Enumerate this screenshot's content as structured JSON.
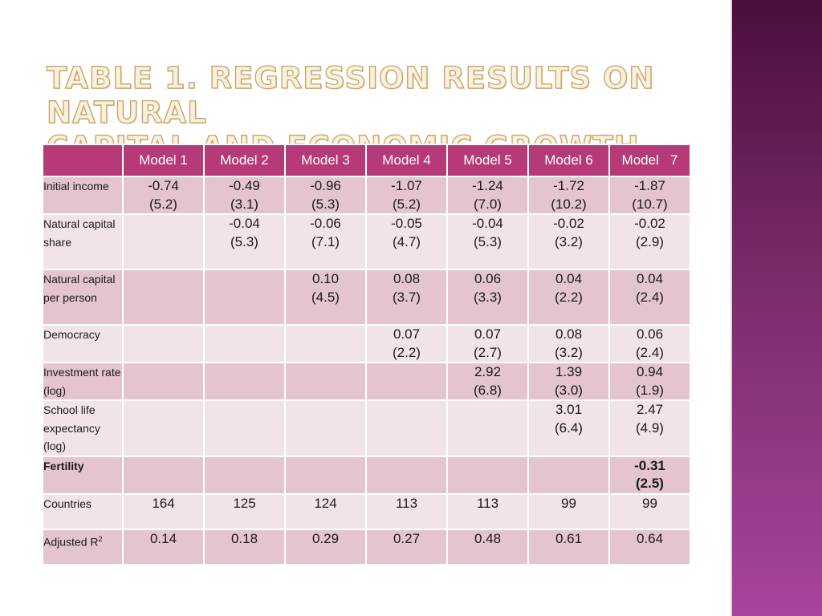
{
  "slide": {
    "title_line1": "Table 1. Regression results on natural",
    "title_line2": "capital and economic growth"
  },
  "table": {
    "columns": [
      "Model 1",
      "Model 2",
      "Model 3",
      "Model 4",
      "Model 5",
      "Model 6",
      "Model   7"
    ],
    "rows": [
      {
        "label": "Initial income",
        "cells": [
          {
            "coef": "-0.74",
            "tstat": "(5.2)"
          },
          {
            "coef": "-0.49",
            "tstat": "(3.1)"
          },
          {
            "coef": "-0.96",
            "tstat": "(5.3)"
          },
          {
            "coef": "-1.07",
            "tstat": "(5.2)"
          },
          {
            "coef": "-1.24",
            "tstat": "(7.0)"
          },
          {
            "coef": "-1.72",
            "tstat": "(10.2)"
          },
          {
            "coef": "-1.87",
            "tstat": "(10.7)"
          }
        ]
      },
      {
        "label": "Natural capital share",
        "cells": [
          {
            "coef": "",
            "tstat": ""
          },
          {
            "coef": "-0.04",
            "tstat": "(5.3)"
          },
          {
            "coef": "-0.06",
            "tstat": "(7.1)"
          },
          {
            "coef": "-0.05",
            "tstat": "(4.7)"
          },
          {
            "coef": "-0.04",
            "tstat": "(5.3)"
          },
          {
            "coef": "-0.02",
            "tstat": "(3.2)"
          },
          {
            "coef": "-0.02",
            "tstat": "(2.9)"
          }
        ]
      },
      {
        "label": "Natural capital per person",
        "cells": [
          {
            "coef": "",
            "tstat": ""
          },
          {
            "coef": "",
            "tstat": ""
          },
          {
            "coef": "0.10",
            "tstat": "(4.5)"
          },
          {
            "coef": "0.08",
            "tstat": "(3.7)"
          },
          {
            "coef": "0.06",
            "tstat": "(3.3)"
          },
          {
            "coef": "0.04",
            "tstat": "(2.2)"
          },
          {
            "coef": "0.04",
            "tstat": "(2.4)"
          }
        ]
      },
      {
        "label": "Democracy",
        "cells": [
          {
            "coef": "",
            "tstat": ""
          },
          {
            "coef": "",
            "tstat": ""
          },
          {
            "coef": "",
            "tstat": ""
          },
          {
            "coef": "0.07",
            "tstat": "(2.2)"
          },
          {
            "coef": "0.07",
            "tstat": "(2.7)"
          },
          {
            "coef": "0.08",
            "tstat": "(3.2)"
          },
          {
            "coef": "0.06",
            "tstat": "(2.4)"
          }
        ]
      },
      {
        "label": "Investment rate (log)",
        "cells": [
          {
            "coef": "",
            "tstat": ""
          },
          {
            "coef": "",
            "tstat": ""
          },
          {
            "coef": "",
            "tstat": ""
          },
          {
            "coef": "",
            "tstat": ""
          },
          {
            "coef": "2.92",
            "tstat": "(6.8)"
          },
          {
            "coef": "1.39",
            "tstat": "(3.0)"
          },
          {
            "coef": "0.94",
            "tstat": "(1.9)"
          }
        ]
      },
      {
        "label": "School life expectancy (log)",
        "cells": [
          {
            "coef": "",
            "tstat": ""
          },
          {
            "coef": "",
            "tstat": ""
          },
          {
            "coef": "",
            "tstat": ""
          },
          {
            "coef": "",
            "tstat": ""
          },
          {
            "coef": "",
            "tstat": ""
          },
          {
            "coef": "3.01",
            "tstat": "(6.4)"
          },
          {
            "coef": "2.47",
            "tstat": "(4.9)"
          }
        ]
      },
      {
        "label": "Fertility",
        "bold": true,
        "cells": [
          {
            "coef": "",
            "tstat": ""
          },
          {
            "coef": "",
            "tstat": ""
          },
          {
            "coef": "",
            "tstat": ""
          },
          {
            "coef": "",
            "tstat": ""
          },
          {
            "coef": "",
            "tstat": ""
          },
          {
            "coef": "",
            "tstat": ""
          },
          {
            "coef": "-0.31",
            "tstat": "(2.5)"
          }
        ]
      },
      {
        "label": "Countries",
        "cells": [
          {
            "coef": "164",
            "tstat": ""
          },
          {
            "coef": "125",
            "tstat": ""
          },
          {
            "coef": "124",
            "tstat": ""
          },
          {
            "coef": "113",
            "tstat": ""
          },
          {
            "coef": "113",
            "tstat": ""
          },
          {
            "coef": "99",
            "tstat": ""
          },
          {
            "coef": "99",
            "tstat": ""
          }
        ]
      },
      {
        "label": "Adjusted R",
        "label_sup": "2",
        "cells": [
          {
            "coef": "0.14",
            "tstat": ""
          },
          {
            "coef": "0.18",
            "tstat": ""
          },
          {
            "coef": "0.29",
            "tstat": ""
          },
          {
            "coef": "0.27",
            "tstat": ""
          },
          {
            "coef": "0.48",
            "tstat": ""
          },
          {
            "coef": "0.61",
            "tstat": ""
          },
          {
            "coef": "0.64",
            "tstat": ""
          }
        ]
      }
    ]
  }
}
